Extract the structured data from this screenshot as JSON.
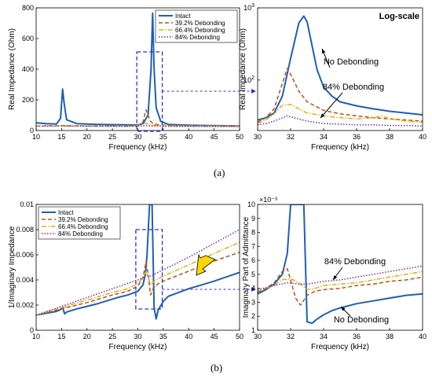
{
  "panel_labels": {
    "a": "(a)",
    "b": "(b)"
  },
  "colors": {
    "intact": "#1f5fb4",
    "d39": "#b5531a",
    "d66": "#d8b21a",
    "d84": "#7b2f9c",
    "box": "#2f2fd0",
    "arrow": "#ffd700"
  },
  "chart_data": [
    {
      "type": "line",
      "xlabel": "Frequency (kHz)",
      "ylabel": "Real Impedance (Ohm)",
      "xlim": [
        10,
        50
      ],
      "ylim": [
        0,
        800
      ],
      "xticks": [
        "10",
        "15",
        "20",
        "25",
        "30",
        "35",
        "40",
        "45",
        "50"
      ],
      "yticks": [
        "0",
        "200",
        "400",
        "600",
        "800"
      ],
      "legend": {
        "placement": "top-right",
        "entries": [
          "Intact",
          "39.2% Debonding",
          "66.4% Debonding",
          "84% Debonding"
        ]
      },
      "series": [
        {
          "name": "Intact",
          "x": [
            10,
            12,
            14,
            14.8,
            15.2,
            15.5,
            16,
            18,
            22,
            26,
            30,
            31,
            32,
            32.6,
            32.9,
            33.2,
            33.6,
            34.5,
            36,
            40,
            45,
            50
          ],
          "y": [
            50,
            45,
            42,
            80,
            270,
            180,
            70,
            45,
            40,
            38,
            36,
            45,
            100,
            400,
            765,
            400,
            150,
            60,
            40,
            35,
            32,
            30
          ]
        },
        {
          "name": "39.2% Debonding",
          "x": [
            10,
            15,
            20,
            25,
            28,
            30,
            31,
            31.6,
            32,
            32.5,
            33,
            34,
            36,
            40,
            45,
            50
          ],
          "y": [
            30,
            32,
            30,
            29,
            30,
            34,
            55,
            135,
            100,
            60,
            45,
            38,
            33,
            30,
            29,
            28
          ]
        },
        {
          "name": "66.4% Debonding",
          "x": [
            10,
            15,
            20,
            25,
            28,
            30,
            31,
            31.5,
            32,
            32.5,
            33,
            34,
            36,
            40,
            45,
            50
          ],
          "y": [
            30,
            31,
            30,
            29,
            30,
            32,
            40,
            48,
            42,
            38,
            35,
            33,
            31,
            30,
            29,
            28
          ]
        },
        {
          "name": "84% Debonding",
          "x": [
            10,
            15,
            20,
            25,
            28,
            30,
            31,
            31.8,
            32.5,
            34,
            36,
            40,
            45,
            50
          ],
          "y": [
            28,
            29,
            28,
            27,
            27,
            28,
            30,
            32,
            30,
            28,
            27,
            27,
            26,
            26
          ]
        }
      ]
    },
    {
      "type": "line",
      "xlabel": "Frequency (kHz)",
      "ylabel": "Real Impedance (Ohm)",
      "annotation_corner": "Log-scale",
      "yscale": "log",
      "xlim": [
        30,
        40
      ],
      "ylim": [
        20,
        1000
      ],
      "xticks": [
        "30",
        "32",
        "34",
        "36",
        "38",
        "40"
      ],
      "ylabels": [
        {
          "base": "10",
          "exp": "2",
          "value": 100
        },
        {
          "base": "10",
          "exp": "3",
          "value": 1000
        }
      ],
      "annotations": [
        "No Debonding",
        "84% Debonding"
      ],
      "series": [
        {
          "name": "No Debonding",
          "x": [
            30,
            30.5,
            31,
            31.5,
            32,
            32.5,
            32.8,
            33,
            33.3,
            33.6,
            34,
            34.5,
            35,
            36,
            37,
            38,
            39,
            40
          ],
          "y": [
            28,
            30,
            35,
            60,
            200,
            620,
            770,
            640,
            300,
            140,
            80,
            60,
            50,
            44,
            40,
            37,
            35,
            33
          ]
        },
        {
          "name": "39.2% Debonding",
          "x": [
            30,
            30.5,
            31,
            31.5,
            31.8,
            32,
            32.5,
            33,
            34,
            35,
            36,
            37,
            38,
            39,
            40
          ],
          "y": [
            26,
            30,
            40,
            90,
            145,
            120,
            70,
            50,
            38,
            34,
            32,
            30,
            29,
            28,
            27
          ]
        },
        {
          "name": "66.4% Debonding",
          "x": [
            30,
            30.5,
            31,
            31.5,
            32,
            32.5,
            33,
            34,
            35,
            36,
            37,
            37.5,
            38,
            39,
            40
          ],
          "y": [
            25,
            28,
            34,
            45,
            46,
            40,
            35,
            32,
            30,
            29,
            30,
            32,
            29,
            27,
            26
          ]
        },
        {
          "name": "84% Debonding",
          "x": [
            30,
            30.5,
            31,
            31.5,
            31.8,
            32.2,
            33,
            34,
            35,
            36,
            37,
            38,
            39,
            40
          ],
          "y": [
            24,
            25,
            27,
            30,
            32,
            30,
            27,
            25,
            24.5,
            24,
            24,
            23.5,
            23.5,
            23
          ]
        }
      ]
    },
    {
      "type": "line",
      "xlabel": "Frequency (kHz)",
      "ylabel": "1/Imaginary Impedance",
      "xlim": [
        10,
        50
      ],
      "ylim": [
        0,
        0.01
      ],
      "xticks": [
        "10",
        "15",
        "20",
        "25",
        "30",
        "35",
        "40",
        "45",
        "50"
      ],
      "yticks": [
        "0",
        "0.002",
        "0.004",
        "0.006",
        "0.008",
        "0.01"
      ],
      "legend": {
        "placement": "top-left",
        "entries": [
          "Intact",
          "39.2% Debonding",
          "66.4% Debonding",
          "84% Debonding"
        ]
      },
      "series": [
        {
          "name": "Intact",
          "x": [
            10,
            12,
            14,
            14.8,
            15.2,
            15.6,
            16,
            18,
            20,
            22,
            24,
            26,
            28,
            30,
            31,
            31.5,
            31.8,
            32.3,
            32.8,
            33.2,
            33.6,
            34,
            35,
            36,
            40,
            45,
            50
          ],
          "y": [
            0.0012,
            0.00135,
            0.0015,
            0.00165,
            0.0018,
            0.0013,
            0.00145,
            0.0017,
            0.0019,
            0.0021,
            0.00235,
            0.0026,
            0.0028,
            0.0031,
            0.0036,
            0.0045,
            0.006,
            0.01,
            0.01,
            0.0018,
            0.0009,
            0.0016,
            0.0023,
            0.0027,
            0.0033,
            0.0039,
            0.0046
          ]
        },
        {
          "name": "39.2% Debonding",
          "x": [
            10,
            15,
            20,
            25,
            28,
            30,
            31,
            31.6,
            32,
            32.5,
            33,
            34,
            35,
            40,
            45,
            50
          ],
          "y": [
            0.0012,
            0.0017,
            0.0022,
            0.0028,
            0.0031,
            0.0035,
            0.0042,
            0.0054,
            0.0045,
            0.0028,
            0.0033,
            0.0037,
            0.0039,
            0.0047,
            0.0055,
            0.0062
          ]
        },
        {
          "name": "66.4% Debonding",
          "x": [
            10,
            15,
            20,
            25,
            28,
            30,
            31,
            31.5,
            32,
            32.5,
            33,
            34,
            35,
            40,
            45,
            50
          ],
          "y": [
            0.0012,
            0.0018,
            0.0024,
            0.003,
            0.0033,
            0.0037,
            0.0042,
            0.0046,
            0.0043,
            0.0036,
            0.0038,
            0.0041,
            0.0043,
            0.0052,
            0.0061,
            0.007
          ]
        },
        {
          "name": "84% Debonding",
          "x": [
            10,
            15,
            20,
            25,
            30,
            31,
            31.8,
            32.5,
            35,
            40,
            45,
            50
          ],
          "y": [
            0.0012,
            0.0019,
            0.0026,
            0.0033,
            0.004,
            0.0042,
            0.0044,
            0.0043,
            0.0048,
            0.0058,
            0.0069,
            0.008
          ]
        }
      ]
    },
    {
      "type": "line",
      "xlabel": "Frequency (kHz)",
      "ylabel": "Imaginary Part of Admittance",
      "yexponent": "×10⁻³",
      "xlim": [
        30,
        40
      ],
      "ylim": [
        1,
        10
      ],
      "xticks": [
        "30",
        "32",
        "34",
        "36",
        "38",
        "40"
      ],
      "yticks": [
        "1",
        "2",
        "3",
        "4",
        "5",
        "6",
        "7",
        "8",
        "9",
        "10"
      ],
      "annotations": [
        "84% Debonding",
        "No Debonding"
      ],
      "series": [
        {
          "name": "No Debonding",
          "x": [
            30,
            30.5,
            31,
            31.5,
            31.8,
            32,
            32.3,
            32.6,
            32.8,
            33,
            33.3,
            33.6,
            34,
            34.5,
            35,
            36,
            37,
            38,
            39,
            40
          ],
          "y": [
            3.6,
            3.9,
            4.3,
            5.0,
            6.5,
            10,
            10,
            10,
            10,
            1.6,
            1.5,
            1.8,
            2.1,
            2.4,
            2.6,
            2.9,
            3.1,
            3.3,
            3.5,
            3.6
          ]
        },
        {
          "name": "39.2% Debonding",
          "x": [
            30,
            30.5,
            31,
            31.5,
            31.8,
            32,
            32.3,
            32.6,
            33,
            33.5,
            34,
            35,
            36,
            37,
            38,
            39,
            40
          ],
          "y": [
            3.7,
            4.0,
            4.4,
            5.2,
            5.4,
            4.6,
            3.3,
            2.8,
            3.5,
            3.8,
            3.9,
            4.0,
            4.2,
            4.3,
            4.5,
            4.6,
            4.8
          ]
        },
        {
          "name": "66.4% Debonding",
          "x": [
            30,
            30.5,
            31,
            31.5,
            32,
            32.5,
            33,
            33.5,
            34,
            35,
            36,
            37,
            38,
            39,
            40
          ],
          "y": [
            3.8,
            4.0,
            4.2,
            4.6,
            4.7,
            4.4,
            3.9,
            4.0,
            4.2,
            4.3,
            4.4,
            4.6,
            4.8,
            5.0,
            5.2
          ]
        },
        {
          "name": "84% Debonding",
          "x": [
            30,
            31,
            31.8,
            32.5,
            33,
            34,
            35,
            36,
            37,
            38,
            39,
            40
          ],
          "y": [
            3.9,
            4.2,
            4.4,
            4.3,
            4.3,
            4.5,
            4.6,
            4.8,
            5.0,
            5.2,
            5.4,
            5.6
          ]
        }
      ]
    }
  ]
}
